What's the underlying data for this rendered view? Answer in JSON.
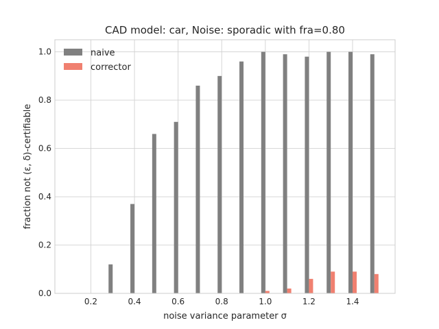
{
  "chart_data": {
    "type": "bar",
    "title": "CAD model: car, Noise: sporadic with fra=0.80",
    "xlabel": "noise variance parameter σ",
    "ylabel": "fraction not (ε, δ)-certifiable",
    "x": [
      0.1,
      0.2,
      0.3,
      0.4,
      0.5,
      0.6,
      0.7,
      0.8,
      0.9,
      1.0,
      1.1,
      1.2,
      1.3,
      1.4,
      1.5
    ],
    "series": [
      {
        "name": "naive",
        "color": "#808080",
        "values": [
          0.0,
          0.0,
          0.12,
          0.37,
          0.66,
          0.71,
          0.86,
          0.9,
          0.96,
          1.0,
          0.99,
          0.98,
          1.0,
          1.0,
          0.99
        ]
      },
      {
        "name": "corrector",
        "color": "#f08070",
        "values": [
          0.0,
          0.0,
          0.0,
          0.0,
          0.0,
          0.0,
          0.0,
          0.0,
          0.0,
          0.01,
          0.02,
          0.06,
          0.09,
          0.09,
          0.08
        ]
      }
    ],
    "xticks": [
      "0.2",
      "0.4",
      "0.6",
      "0.8",
      "1.0",
      "1.2",
      "1.4"
    ],
    "xtick_values": [
      0.2,
      0.4,
      0.6,
      0.8,
      1.0,
      1.2,
      1.4
    ],
    "yticks": [
      "0.0",
      "0.2",
      "0.4",
      "0.6",
      "0.8",
      "1.0"
    ],
    "ytick_values": [
      0.0,
      0.2,
      0.4,
      0.6,
      0.8,
      1.0
    ],
    "xlim": [
      0.035,
      1.595
    ],
    "ylim": [
      0.0,
      1.05
    ],
    "grid": true,
    "legend_position": "top-left"
  }
}
